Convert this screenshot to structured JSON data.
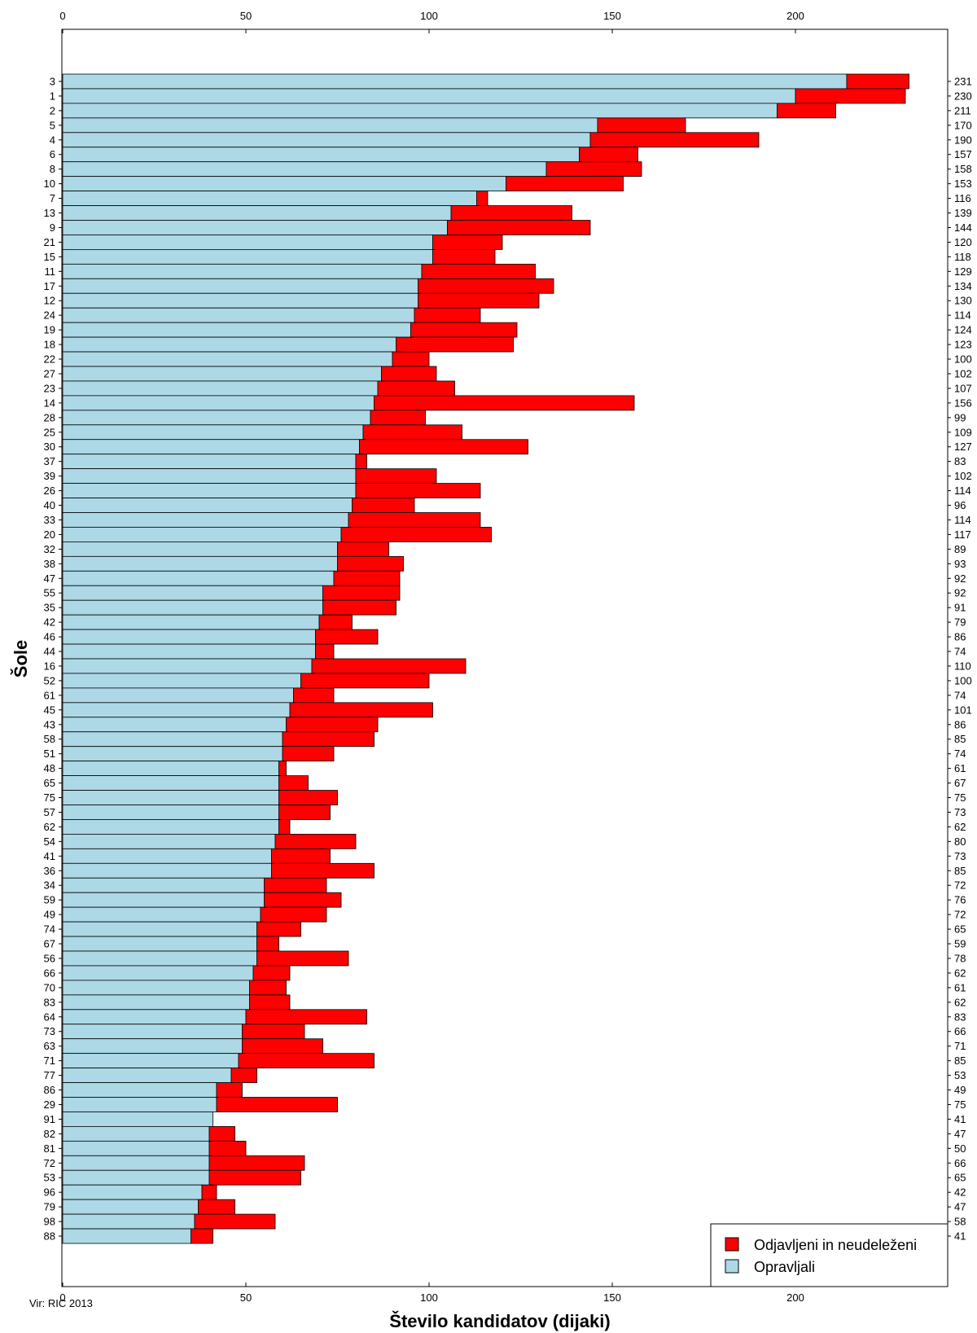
{
  "chart_data": {
    "type": "bar",
    "orientation": "horizontal",
    "stacked": true,
    "ylabel": "Šole",
    "xlabel": "Število kandidatov (dijaki)",
    "xlim": [
      0,
      240
    ],
    "x_ticks": [
      0,
      50,
      100,
      150,
      200
    ],
    "x_tick_labels": [
      "0",
      "50",
      "100",
      "150",
      "200"
    ],
    "source_note": "Vir: RIC 2013",
    "legend_position": "bottom-right",
    "grid": false,
    "categories": [
      "3",
      "1",
      "2",
      "5",
      "4",
      "6",
      "8",
      "10",
      "7",
      "13",
      "9",
      "21",
      "15",
      "11",
      "17",
      "12",
      "24",
      "19",
      "18",
      "22",
      "27",
      "23",
      "14",
      "28",
      "25",
      "30",
      "37",
      "39",
      "26",
      "40",
      "33",
      "20",
      "32",
      "38",
      "47",
      "55",
      "35",
      "42",
      "46",
      "44",
      "16",
      "52",
      "61",
      "45",
      "43",
      "58",
      "51",
      "48",
      "65",
      "75",
      "57",
      "62",
      "54",
      "41",
      "36",
      "34",
      "59",
      "49",
      "74",
      "67",
      "56",
      "66",
      "70",
      "83",
      "64",
      "73",
      "63",
      "71",
      "77",
      "86",
      "29",
      "91",
      "82",
      "81",
      "72",
      "53",
      "96",
      "79",
      "98",
      "88"
    ],
    "totals": [
      231,
      230,
      211,
      170,
      190,
      157,
      158,
      153,
      116,
      139,
      144,
      120,
      118,
      129,
      134,
      130,
      114,
      124,
      123,
      100,
      102,
      107,
      156,
      99,
      109,
      127,
      83,
      102,
      114,
      96,
      114,
      117,
      89,
      93,
      92,
      92,
      91,
      79,
      86,
      74,
      110,
      100,
      74,
      101,
      86,
      85,
      74,
      61,
      67,
      75,
      73,
      62,
      80,
      73,
      85,
      72,
      76,
      72,
      65,
      59,
      78,
      62,
      61,
      62,
      83,
      66,
      71,
      85,
      53,
      49,
      75,
      41,
      47,
      50,
      66,
      65,
      42,
      47,
      58,
      41
    ],
    "series": [
      {
        "name": "Opravljali",
        "color": "#add8e6",
        "values": [
          214,
          200,
          195,
          146,
          144,
          141,
          132,
          121,
          113,
          106,
          105,
          101,
          101,
          98,
          97,
          97,
          96,
          95,
          91,
          90,
          87,
          86,
          85,
          84,
          82,
          81,
          80,
          80,
          80,
          79,
          78,
          76,
          75,
          75,
          74,
          71,
          71,
          70,
          69,
          69,
          68,
          65,
          63,
          62,
          61,
          60,
          60,
          59,
          59,
          59,
          59,
          59,
          58,
          57,
          57,
          55,
          55,
          54,
          53,
          53,
          53,
          52,
          51,
          51,
          50,
          49,
          49,
          48,
          46,
          42,
          42,
          41,
          40,
          40,
          40,
          40,
          38,
          37,
          36,
          35
        ]
      },
      {
        "name": "Odjavljeni in neudeleženi",
        "color": "#ff0000",
        "values": [
          17,
          30,
          16,
          24,
          46,
          16,
          26,
          32,
          3,
          33,
          39,
          19,
          17,
          31,
          37,
          33,
          18,
          29,
          32,
          10,
          15,
          21,
          71,
          15,
          27,
          46,
          3,
          22,
          34,
          17,
          36,
          41,
          14,
          18,
          18,
          21,
          20,
          9,
          17,
          5,
          42,
          35,
          11,
          39,
          25,
          25,
          14,
          2,
          8,
          16,
          14,
          3,
          22,
          16,
          28,
          17,
          21,
          18,
          12,
          6,
          25,
          10,
          10,
          11,
          33,
          17,
          22,
          37,
          7,
          7,
          33,
          0,
          7,
          10,
          26,
          25,
          4,
          10,
          22,
          6
        ]
      }
    ]
  }
}
